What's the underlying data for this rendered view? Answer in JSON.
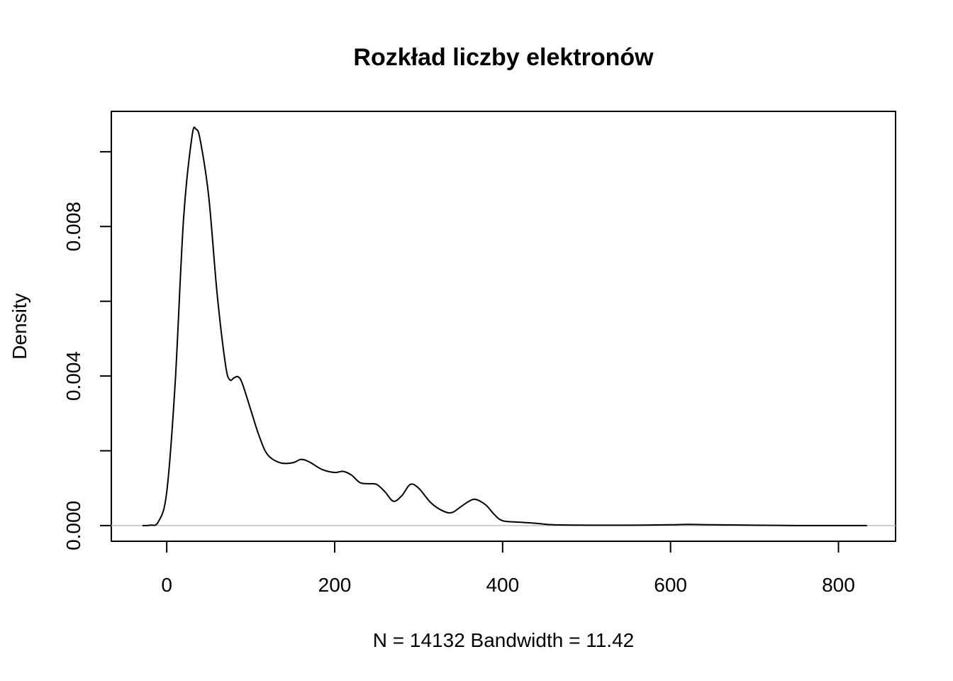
{
  "chart_data": {
    "type": "line",
    "title": "Rozkład liczby elektronów",
    "xlabel": "N = 14132   Bandwidth = 11.42",
    "ylabel": "Density",
    "xlim": [
      -66,
      868
    ],
    "ylim": [
      -0.00042,
      0.01108
    ],
    "x_ticks": [
      0,
      200,
      400,
      600,
      800
    ],
    "x_tick_labels": [
      "0",
      "200",
      "400",
      "600",
      "800"
    ],
    "y_ticks": [
      0,
      0.002,
      0.004,
      0.006,
      0.008,
      0.01
    ],
    "y_tick_labels": [
      "0.000",
      "",
      "0.004",
      "",
      "0.008",
      ""
    ],
    "grid": false,
    "baseline": 0,
    "series": [
      {
        "x": [
          -29,
          -20,
          -10,
          0,
          10,
          20,
          30,
          35,
          40,
          50,
          60,
          70,
          75,
          80,
          85,
          90,
          100,
          110,
          120,
          135,
          150,
          160,
          170,
          185,
          200,
          210,
          220,
          230,
          240,
          250,
          260,
          270,
          280,
          290,
          300,
          315,
          330,
          340,
          350,
          360,
          368,
          380,
          390,
          400,
          420,
          440,
          460,
          500,
          550,
          600,
          620,
          650,
          700,
          750,
          800,
          834
        ],
        "y": [
          0.0,
          1e-05,
          0.0001,
          0.0009,
          0.0038,
          0.0082,
          0.0104,
          0.0106,
          0.0103,
          0.0088,
          0.0062,
          0.0043,
          0.0039,
          0.00395,
          0.00398,
          0.0038,
          0.0031,
          0.0024,
          0.0019,
          0.00168,
          0.00168,
          0.00177,
          0.0017,
          0.0015,
          0.00142,
          0.00145,
          0.00135,
          0.00115,
          0.00112,
          0.0011,
          0.0009,
          0.00065,
          0.0008,
          0.0011,
          0.001,
          0.0006,
          0.00038,
          0.00035,
          0.0005,
          0.00065,
          0.0007,
          0.00055,
          0.0003,
          0.00013,
          9e-05,
          6e-05,
          2e-05,
          1e-05,
          1e-05,
          2e-05,
          3e-05,
          2e-05,
          1e-05,
          0.0,
          0.0,
          0.0
        ]
      }
    ]
  }
}
